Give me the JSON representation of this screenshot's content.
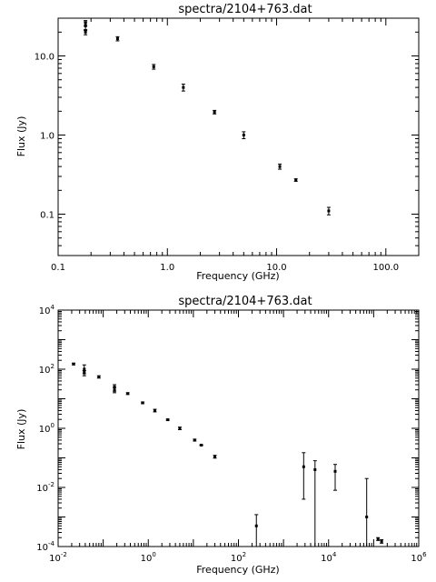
{
  "chart_data": [
    {
      "type": "scatter",
      "title": "spectra/2104+763.dat",
      "xlabel": "Frequency (GHz)",
      "ylabel": "Flux (Jy)",
      "xscale": "log",
      "yscale": "log",
      "xlim": [
        0.1,
        200
      ],
      "ylim": [
        0.03,
        30
      ],
      "xtick_values": [
        0.1,
        1,
        10,
        100
      ],
      "xtick_labels": [
        "0.1",
        "1.0",
        "10.0",
        "100.0"
      ],
      "ytick_values": [
        0.1,
        1,
        10
      ],
      "ytick_labels": [
        "0.1",
        "1.0",
        "10.0"
      ],
      "grid": false,
      "series": [
        {
          "x": [
            0.178,
            0.178,
            0.178,
            0.35,
            0.75,
            1.4,
            2.7,
            5.0,
            10.7,
            15.0,
            30.0
          ],
          "y": [
            24.0,
            20.0,
            26.0,
            16.5,
            7.3,
            4.0,
            1.95,
            1.0,
            0.4,
            0.27,
            0.11
          ],
          "ylow": [
            21.0,
            18.5,
            24.0,
            15.5,
            6.8,
            3.6,
            1.85,
            0.9,
            0.37,
            0.26,
            0.098
          ],
          "yhigh": [
            27.0,
            21.5,
            28.0,
            17.5,
            7.8,
            4.4,
            2.05,
            1.1,
            0.43,
            0.28,
            0.122
          ]
        }
      ]
    },
    {
      "type": "scatter",
      "title": "spectra/2104+763.dat",
      "xlabel": "Frequency (GHz)",
      "ylabel": "Flux (Jy)",
      "xscale": "log",
      "yscale": "log",
      "xlim": [
        0.01,
        1000000
      ],
      "ylim": [
        0.0001,
        10000
      ],
      "xtick_values": [
        0.01,
        1,
        100,
        10000,
        1000000
      ],
      "xtick_labels": [
        {
          "base": "10",
          "exp": "-2"
        },
        {
          "base": "10",
          "exp": "0"
        },
        {
          "base": "10",
          "exp": "2"
        },
        {
          "base": "10",
          "exp": "4"
        },
        {
          "base": "10",
          "exp": "6"
        }
      ],
      "ytick_values": [
        0.0001,
        0.01,
        1,
        100,
        10000
      ],
      "ytick_labels": [
        {
          "base": "10",
          "exp": "-4"
        },
        {
          "base": "10",
          "exp": "-2"
        },
        {
          "base": "10",
          "exp": "0"
        },
        {
          "base": "10",
          "exp": "2"
        },
        {
          "base": "10",
          "exp": "4"
        }
      ],
      "grid": false,
      "series": [
        {
          "x": [
            0.022,
            0.038,
            0.038,
            0.08,
            0.178,
            0.178,
            0.35,
            0.75,
            1.4,
            2.7,
            5.0,
            10.7,
            15.0,
            30.0,
            250,
            2800,
            5000,
            14000,
            70000,
            125000,
            150000
          ],
          "y": [
            150,
            100,
            80,
            55,
            25,
            20,
            15,
            7.3,
            4.0,
            1.95,
            1.0,
            0.4,
            0.27,
            0.11,
            0.0005,
            0.05,
            0.04,
            0.035,
            0.001,
            0.00018,
            0.00015
          ],
          "ylow": [
            140,
            60,
            70,
            50,
            18,
            16,
            14,
            6.8,
            3.6,
            1.85,
            0.9,
            0.37,
            0.26,
            0.098,
            0.0001,
            0.004,
            0.0001,
            0.008,
            0.0001,
            0.00016,
            0.00013
          ],
          "yhigh": [
            160,
            140,
            90,
            60,
            30,
            24,
            16,
            7.8,
            4.4,
            2.05,
            1.1,
            0.43,
            0.28,
            0.122,
            0.0012,
            0.15,
            0.08,
            0.06,
            0.02,
            0.0002,
            0.00017
          ]
        }
      ]
    }
  ]
}
